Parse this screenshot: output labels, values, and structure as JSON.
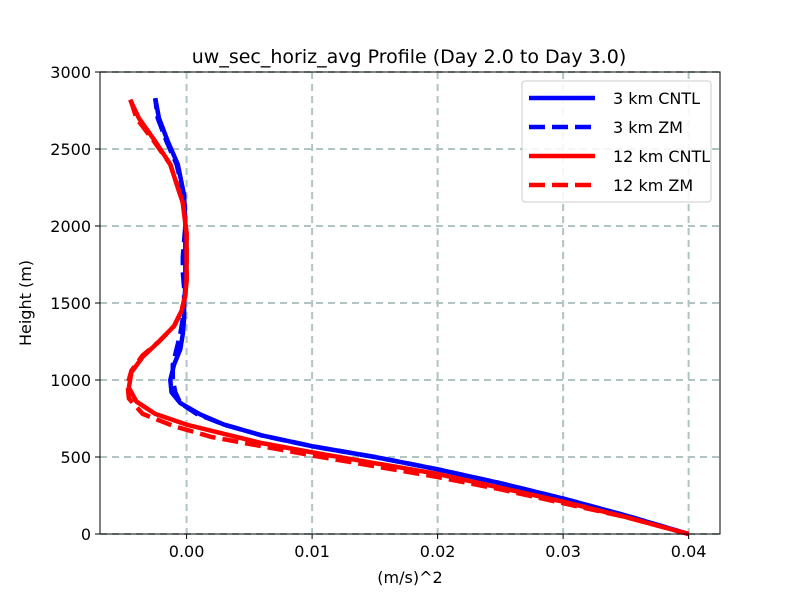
{
  "chart_data": {
    "type": "line",
    "title": "uw_sec_horiz_avg Profile (Day 2.0 to Day 3.0)",
    "xlabel": "(m/s)^2",
    "ylabel": "Height (m)",
    "xlim": [
      -0.0069,
      0.0425
    ],
    "ylim": [
      0,
      3000
    ],
    "xticks": [
      0.0,
      0.01,
      0.02,
      0.03,
      0.04
    ],
    "xtick_labels": [
      "0.00",
      "0.01",
      "0.02",
      "0.03",
      "0.04"
    ],
    "yticks": [
      0,
      500,
      1000,
      1500,
      2000,
      2500,
      3000
    ],
    "ytick_labels": [
      "0",
      "500",
      "1000",
      "1500",
      "2000",
      "2500",
      "3000"
    ],
    "grid": true,
    "legend_position": "top-right",
    "series": [
      {
        "name": "3 km CNTL",
        "color": "#0000ff",
        "dash": "solid",
        "x": [
          0.04,
          0.035,
          0.03,
          0.025,
          0.02,
          0.015,
          0.01,
          0.006,
          0.003,
          0.001,
          -0.0005,
          -0.0012,
          -0.0013,
          -0.001,
          -0.0005,
          -0.0003,
          -0.0002,
          -0.0002,
          -0.0001,
          -0.0001,
          -0.0001,
          -0.0001,
          -0.0001,
          -0.0002,
          -0.0007,
          -0.0015,
          -0.0022,
          -0.0025
        ],
        "y": [
          0,
          120,
          230,
          330,
          420,
          500,
          570,
          640,
          710,
          780,
          850,
          920,
          1000,
          1100,
          1200,
          1300,
          1400,
          1500,
          1600,
          1700,
          1800,
          1900,
          2000,
          2200,
          2400,
          2550,
          2700,
          2830
        ]
      },
      {
        "name": "3 km ZM",
        "color": "#0000ff",
        "dash": "dashed",
        "x": [
          0.04,
          0.035,
          0.03,
          0.025,
          0.02,
          0.015,
          0.01,
          0.006,
          0.003,
          0.0008,
          -0.0005,
          -0.0009,
          -0.0011,
          -0.0011,
          -0.0008,
          -0.0005,
          -0.0003,
          -0.0002,
          -0.0002,
          -0.0003,
          -0.0003,
          -0.0002,
          -0.0001,
          -0.0002,
          -0.0008,
          -0.0016,
          -0.0023,
          -0.0025
        ],
        "y": [
          0,
          120,
          230,
          330,
          420,
          500,
          570,
          640,
          710,
          780,
          850,
          920,
          1000,
          1100,
          1200,
          1300,
          1400,
          1500,
          1600,
          1700,
          1800,
          1900,
          2000,
          2200,
          2400,
          2550,
          2700,
          2830
        ]
      },
      {
        "name": "12 km CNTL",
        "color": "#ff0000",
        "dash": "solid",
        "x": [
          0.04,
          0.035,
          0.03,
          0.025,
          0.02,
          0.015,
          0.01,
          0.006,
          0.003,
          0.0,
          -0.0025,
          -0.004,
          -0.0046,
          -0.0044,
          -0.0035,
          -0.0022,
          -0.001,
          -0.0004,
          -0.0001,
          0.0,
          0.0,
          0.0,
          0.0,
          -0.0003,
          -0.0013,
          -0.0025,
          -0.0038,
          -0.0045
        ],
        "y": [
          0,
          110,
          210,
          300,
          390,
          460,
          530,
          590,
          650,
          710,
          780,
          860,
          950,
          1050,
          1150,
          1250,
          1350,
          1450,
          1550,
          1650,
          1750,
          1850,
          1950,
          2150,
          2400,
          2550,
          2700,
          2820
        ]
      },
      {
        "name": "12 km ZM",
        "color": "#ff0000",
        "dash": "dashed",
        "x": [
          0.04,
          0.035,
          0.03,
          0.025,
          0.02,
          0.015,
          0.01,
          0.006,
          0.002,
          -0.001,
          -0.0035,
          -0.0046,
          -0.0047,
          -0.0044,
          -0.0035,
          -0.0022,
          -0.001,
          -0.0004,
          -0.0001,
          0.0,
          0.0,
          0.0,
          0.0,
          -0.0003,
          -0.0013,
          -0.0026,
          -0.004,
          -0.0045
        ],
        "y": [
          0,
          110,
          200,
          290,
          370,
          440,
          510,
          570,
          630,
          700,
          780,
          880,
          970,
          1060,
          1160,
          1250,
          1350,
          1450,
          1550,
          1650,
          1750,
          1850,
          1950,
          2150,
          2400,
          2550,
          2700,
          2830
        ]
      }
    ]
  }
}
